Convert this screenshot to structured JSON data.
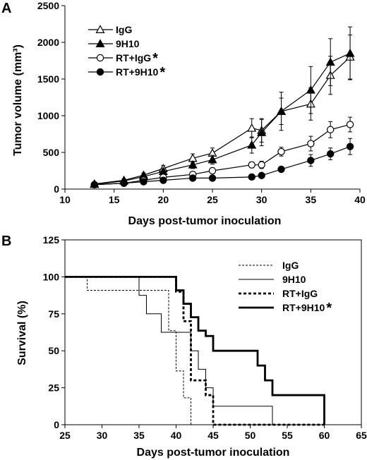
{
  "figure": {
    "panel_a_label": "A",
    "panel_b_label": "B"
  },
  "chart_data": [
    {
      "type": "line",
      "panel": "A",
      "xlabel": "Days post-tumor inoculation",
      "ylabel": "Tumor volume (mm³)",
      "xlim": [
        10,
        40
      ],
      "ylim": [
        0,
        2500
      ],
      "xticks": [
        "10",
        "15",
        "20",
        "25",
        "30",
        "35",
        "40"
      ],
      "yticks": [
        "0",
        "500",
        "1000",
        "1500",
        "2000",
        "2500"
      ],
      "legend": {
        "placement": "top-left"
      },
      "significance_mark": "*",
      "series": [
        {
          "name": "IgG",
          "marker": "open-triangle",
          "significant": false,
          "x": [
            13,
            16,
            18,
            20,
            23,
            25,
            29,
            30,
            32,
            35,
            37,
            39
          ],
          "y": [
            70,
            120,
            190,
            280,
            420,
            490,
            830,
            800,
            1060,
            1160,
            1550,
            1800
          ],
          "err": [
            15,
            20,
            30,
            40,
            60,
            70,
            130,
            160,
            180,
            220,
            260,
            300
          ]
        },
        {
          "name": "9H10",
          "marker": "filled-triangle",
          "significant": false,
          "x": [
            13,
            16,
            18,
            20,
            23,
            25,
            29,
            30,
            32,
            35,
            37,
            39
          ],
          "y": [
            65,
            110,
            170,
            240,
            330,
            400,
            600,
            770,
            1060,
            1350,
            1730,
            1850
          ],
          "err": [
            15,
            20,
            30,
            35,
            50,
            60,
            110,
            180,
            260,
            320,
            320,
            360
          ]
        },
        {
          "name": "RT+IgG",
          "marker": "open-circle",
          "significant": true,
          "x": [
            13,
            16,
            18,
            20,
            23,
            25,
            29,
            30,
            32,
            35,
            37,
            39
          ],
          "y": [
            60,
            80,
            120,
            160,
            200,
            250,
            330,
            330,
            510,
            620,
            810,
            880
          ],
          "err": [
            10,
            15,
            20,
            25,
            30,
            40,
            40,
            50,
            60,
            100,
            110,
            100
          ]
        },
        {
          "name": "RT+9H10",
          "marker": "filled-circle",
          "significant": true,
          "x": [
            13,
            16,
            18,
            20,
            23,
            25,
            29,
            30,
            32,
            35,
            37,
            39
          ],
          "y": [
            60,
            80,
            100,
            120,
            150,
            150,
            165,
            185,
            270,
            390,
            480,
            580
          ],
          "err": [
            10,
            15,
            15,
            20,
            20,
            20,
            20,
            20,
            30,
            80,
            80,
            110
          ]
        }
      ]
    },
    {
      "type": "line",
      "subtype": "step",
      "panel": "B",
      "xlabel": "Days post-tumor inoculation",
      "ylabel": "Survival (%)",
      "xlim": [
        25,
        65
      ],
      "ylim": [
        0,
        125
      ],
      "xticks": [
        "25",
        "30",
        "35",
        "40",
        "45",
        "50",
        "55",
        "60",
        "65"
      ],
      "yticks": [
        "0",
        "25",
        "50",
        "75",
        "100",
        "125"
      ],
      "legend": {
        "placement": "top-right"
      },
      "significance_mark": "*",
      "series": [
        {
          "name": "IgG",
          "style": "thin-dashed",
          "significant": false,
          "x": [
            25,
            28,
            39,
            40,
            41,
            42,
            45
          ],
          "y": [
            100,
            90.9,
            63.6,
            36.4,
            18.2,
            0,
            0
          ]
        },
        {
          "name": "9H10",
          "style": "thin-solid",
          "significant": false,
          "x": [
            25,
            35,
            36,
            38,
            42,
            43,
            44,
            45,
            53
          ],
          "y": [
            100,
            87.5,
            75,
            62.5,
            50,
            37.5,
            25,
            12.5,
            0
          ]
        },
        {
          "name": "RT+IgG",
          "style": "thick-dashed",
          "significant": false,
          "x": [
            25,
            40,
            41,
            42,
            44,
            45,
            60
          ],
          "y": [
            100,
            90,
            70,
            30,
            20,
            0,
            0
          ]
        },
        {
          "name": "RT+9H10",
          "style": "thick-solid",
          "significant": true,
          "x": [
            25,
            40,
            41,
            42,
            43,
            44,
            45,
            51,
            52,
            53,
            55,
            60
          ],
          "y": [
            100,
            90.9,
            81.8,
            72.7,
            63.6,
            60,
            50,
            40,
            30,
            20,
            20,
            0
          ]
        }
      ]
    }
  ]
}
